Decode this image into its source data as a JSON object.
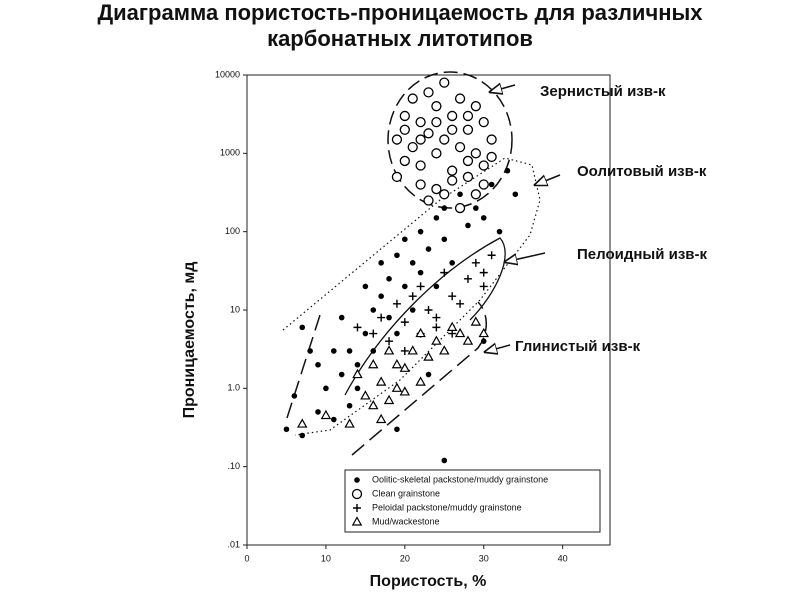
{
  "chart_data": {
    "type": "scatter",
    "title": "Диаграмма пористость-проницаемость для различных карбонатных литотипов",
    "x_label": "Пористость, %",
    "y_label": "Проницаемость, мд",
    "xlim": [
      0,
      46
    ],
    "xticks": [
      0,
      10,
      20,
      30,
      40
    ],
    "ylim": [
      0.01,
      10000
    ],
    "y_scale": "log",
    "yticks": [
      {
        "value": 0.01,
        "label": ".01"
      },
      {
        "value": 0.1,
        "label": ".10"
      },
      {
        "value": 1,
        "label": "1.0"
      },
      10,
      100,
      1000,
      10000
    ],
    "annotations": [
      "Зернистый изв-к",
      "Оолитовый изв-к",
      "Пелоидный изв-к",
      "Глинистый изв-к"
    ],
    "series": [
      {
        "name": "Oolitic-skeletal packstone/muddy grainstone",
        "color": "#000000",
        "marker": "dot",
        "x": [
          5,
          6,
          7,
          7,
          8,
          9,
          9,
          10,
          11,
          11,
          12,
          12,
          13,
          13,
          14,
          14,
          15,
          15,
          16,
          16,
          17,
          17,
          18,
          18,
          19,
          19,
          20,
          20,
          21,
          21,
          22,
          22,
          23,
          24,
          24,
          25,
          25,
          26,
          27,
          28,
          29,
          30,
          31,
          32,
          33,
          34,
          25,
          30,
          23,
          19
        ],
        "values": [
          0.3,
          0.8,
          0.25,
          6,
          3,
          0.5,
          2,
          1,
          3,
          0.4,
          1.5,
          8,
          0.6,
          3,
          2,
          1,
          5,
          20,
          10,
          3,
          15,
          40,
          8,
          25,
          50,
          0.3,
          20,
          80,
          40,
          10,
          100,
          30,
          60,
          150,
          20,
          80,
          200,
          40,
          300,
          120,
          200,
          150,
          400,
          100,
          600,
          300,
          0.12,
          4,
          1.5,
          5
        ]
      },
      {
        "name": "Clean grainstone",
        "color": "#000000",
        "marker": "circle",
        "x": [
          20,
          21,
          22,
          23,
          24,
          25,
          26,
          27,
          28,
          29,
          30,
          31,
          19,
          20,
          21,
          22,
          23,
          24,
          25,
          26,
          27,
          28,
          29,
          30,
          31,
          22,
          24,
          26,
          28,
          30,
          23,
          25,
          27,
          29,
          19,
          20,
          26,
          28,
          24,
          22
        ],
        "values": [
          3000,
          5000,
          2500,
          6000,
          4000,
          8000,
          3000,
          5000,
          2000,
          4000,
          2500,
          1500,
          1500,
          800,
          1200,
          700,
          1800,
          1000,
          1500,
          600,
          1200,
          800,
          1000,
          700,
          900,
          400,
          350,
          450,
          500,
          400,
          250,
          300,
          200,
          300,
          500,
          2000,
          2000,
          3000,
          2500,
          1500
        ]
      },
      {
        "name": "Peloidal packstone/muddy grainstone",
        "color": "#000000",
        "marker": "plus",
        "x": [
          14,
          16,
          17,
          18,
          19,
          20,
          21,
          22,
          22,
          23,
          24,
          25,
          26,
          27,
          28,
          29,
          30,
          31,
          30,
          24,
          20,
          26
        ],
        "values": [
          6,
          5,
          8,
          4,
          12,
          7,
          15,
          5,
          20,
          10,
          8,
          30,
          15,
          12,
          25,
          40,
          30,
          50,
          20,
          6,
          3,
          5
        ]
      },
      {
        "name": "Mud/wackestone",
        "color": "#000000",
        "marker": "triangle",
        "x": [
          7,
          10,
          13,
          14,
          15,
          16,
          17,
          17,
          18,
          18,
          19,
          19,
          20,
          20,
          21,
          22,
          23,
          24,
          25,
          26,
          27,
          28,
          29,
          30,
          16,
          22
        ],
        "values": [
          0.35,
          0.45,
          0.35,
          1.5,
          0.8,
          2,
          0.4,
          1.2,
          3,
          0.7,
          2,
          1,
          0.9,
          1.8,
          3,
          5,
          2.5,
          4,
          3,
          6,
          5,
          4,
          7,
          5,
          0.6,
          1.2
        ]
      }
    ]
  }
}
